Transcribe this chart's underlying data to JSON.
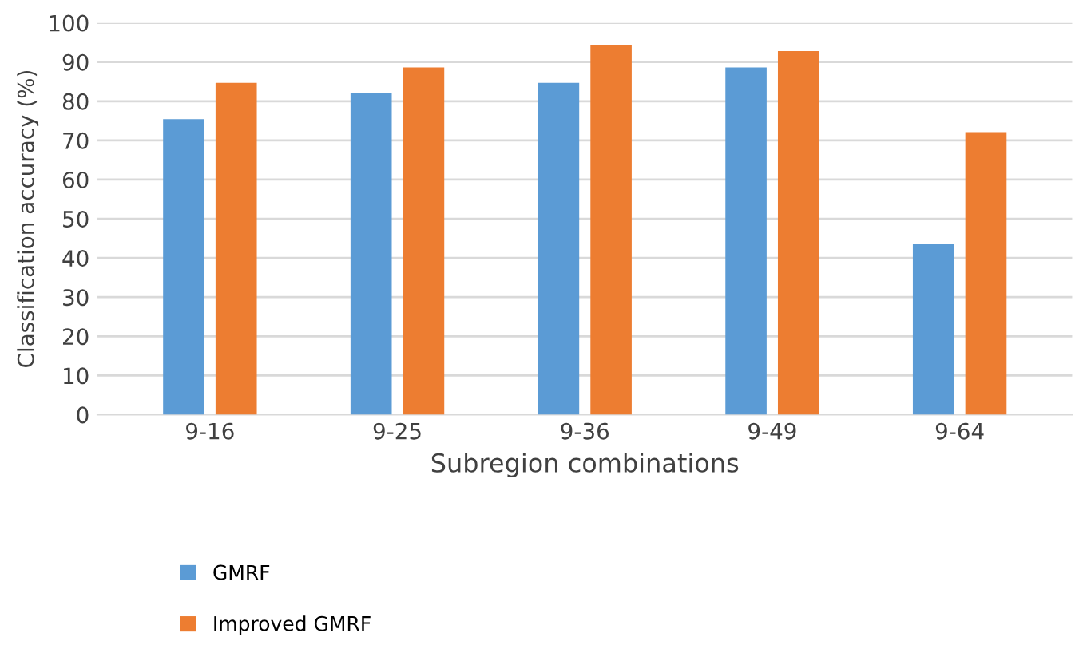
{
  "chart_data": {
    "type": "bar",
    "xlabel": "Subregion combinations",
    "ylabel": "Classification accuracy (%)",
    "categories": [
      "9-16",
      "9-25",
      "9-36",
      "9-49",
      "9-64"
    ],
    "series": [
      {
        "name": "GMRF",
        "color": "#5b9bd5",
        "values": [
          75.4,
          82.1,
          84.7,
          88.6,
          43.5
        ]
      },
      {
        "name": "Improved GMRF",
        "color": "#ed7d31",
        "values": [
          84.7,
          88.6,
          94.4,
          92.8,
          72.1
        ]
      }
    ],
    "ylim": [
      0,
      100
    ],
    "yticks": [
      0,
      10,
      20,
      30,
      40,
      50,
      60,
      70,
      80,
      90,
      100
    ],
    "grid": "y",
    "legend": "bottom"
  }
}
